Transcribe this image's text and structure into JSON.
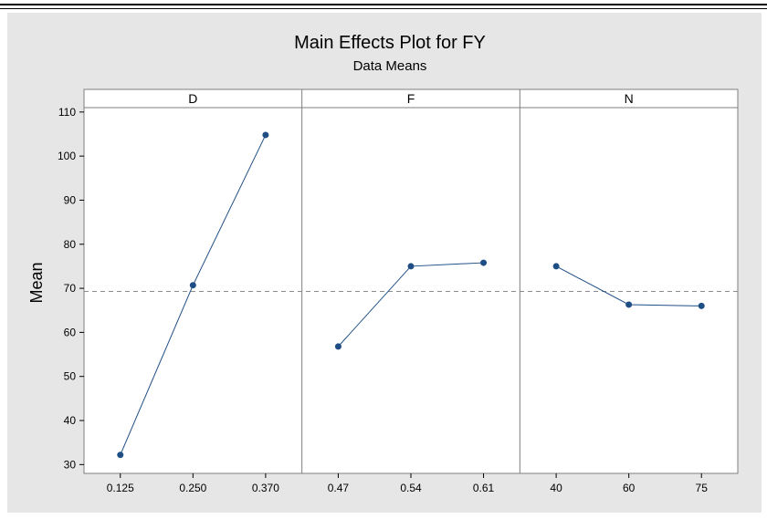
{
  "chart_data": {
    "type": "line",
    "title": "Main Effects Plot for FY",
    "subtitle": "Data Means",
    "ylabel": "Mean",
    "ylim": [
      28,
      111
    ],
    "yticks": [
      30,
      40,
      50,
      60,
      70,
      80,
      90,
      100,
      110
    ],
    "reference_line": 69.3,
    "colors": {
      "series": "#1f4e85",
      "reference": "#8c8c8c",
      "panel_border": "#7f7f7f",
      "background": "#e6e6e6",
      "plot_bg": "#ffffff"
    },
    "panels": [
      {
        "name": "D",
        "categories": [
          "0.125",
          "0.250",
          "0.370"
        ],
        "values": [
          32.2,
          70.7,
          104.8
        ]
      },
      {
        "name": "F",
        "categories": [
          "0.47",
          "0.54",
          "0.61"
        ],
        "values": [
          56.8,
          75.0,
          75.8
        ]
      },
      {
        "name": "N",
        "categories": [
          "40",
          "60",
          "75"
        ],
        "values": [
          75.0,
          66.3,
          66.0
        ]
      }
    ]
  }
}
